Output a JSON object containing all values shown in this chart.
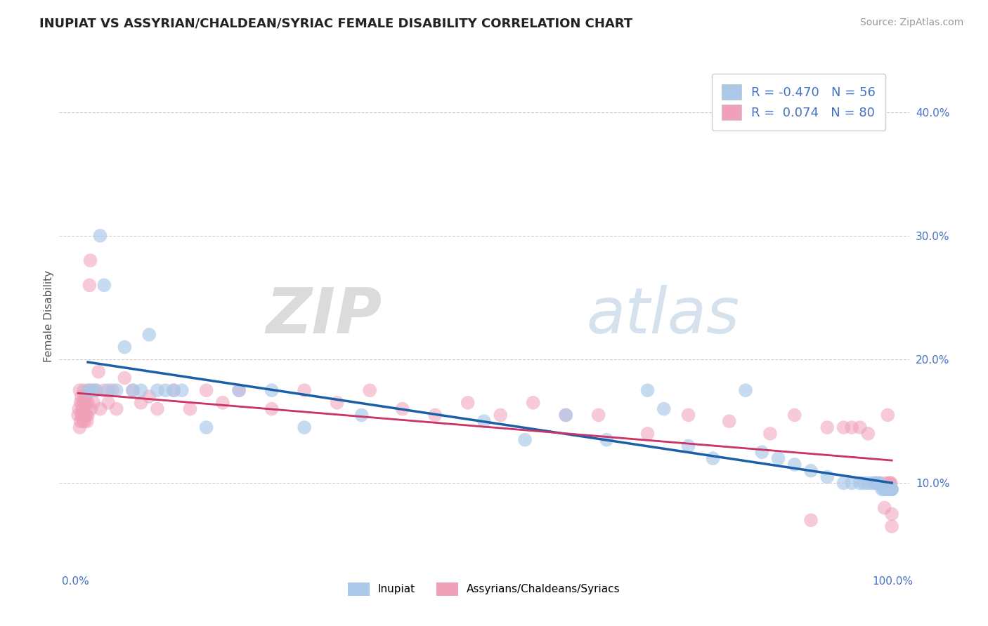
{
  "title": "INUPIAT VS ASSYRIAN/CHALDEAN/SYRIAC FEMALE DISABILITY CORRELATION CHART",
  "source": "Source: ZipAtlas.com",
  "ylabel": "Female Disability",
  "xlim": [
    -0.02,
    1.02
  ],
  "ylim": [
    0.03,
    0.44
  ],
  "yticks": [
    0.1,
    0.2,
    0.3,
    0.4
  ],
  "ytick_labels": [
    "10.0%",
    "20.0%",
    "30.0%",
    "40.0%"
  ],
  "xtick_positions": [
    0.0,
    1.0
  ],
  "xtick_labels": [
    "0.0%",
    "100.0%"
  ],
  "legend_R1": "-0.470",
  "legend_N1": "56",
  "legend_R2": "0.074",
  "legend_N2": "80",
  "color_inupiat": "#aac8e8",
  "color_assyrian": "#f0a0b8",
  "color_inupiat_line": "#1a5fa8",
  "color_assyrian_line": "#cc3366",
  "background_color": "#ffffff",
  "grid_color": "#cccccc",
  "inupiat_x": [
    0.015,
    0.02,
    0.025,
    0.03,
    0.035,
    0.04,
    0.05,
    0.06,
    0.07,
    0.08,
    0.09,
    0.1,
    0.11,
    0.12,
    0.13,
    0.16,
    0.2,
    0.24,
    0.28,
    0.35,
    0.5,
    0.55,
    0.6,
    0.65,
    0.7,
    0.72,
    0.75,
    0.78,
    0.82,
    0.84,
    0.86,
    0.88,
    0.9,
    0.92,
    0.94,
    0.95,
    0.96,
    0.965,
    0.97,
    0.975,
    0.978,
    0.981,
    0.984,
    0.987,
    0.989,
    0.991,
    0.993,
    0.994,
    0.995,
    0.996,
    0.997,
    0.997,
    0.998,
    0.998,
    0.999,
    0.999
  ],
  "inupiat_y": [
    0.175,
    0.175,
    0.175,
    0.3,
    0.26,
    0.175,
    0.175,
    0.21,
    0.175,
    0.175,
    0.22,
    0.175,
    0.175,
    0.175,
    0.175,
    0.145,
    0.175,
    0.175,
    0.145,
    0.155,
    0.15,
    0.135,
    0.155,
    0.135,
    0.175,
    0.16,
    0.13,
    0.12,
    0.175,
    0.125,
    0.12,
    0.115,
    0.11,
    0.105,
    0.1,
    0.1,
    0.1,
    0.1,
    0.1,
    0.1,
    0.1,
    0.1,
    0.1,
    0.095,
    0.095,
    0.095,
    0.095,
    0.095,
    0.095,
    0.095,
    0.095,
    0.095,
    0.095,
    0.095,
    0.095,
    0.095
  ],
  "assyrian_x": [
    0.003,
    0.004,
    0.005,
    0.005,
    0.006,
    0.006,
    0.007,
    0.007,
    0.008,
    0.008,
    0.008,
    0.009,
    0.009,
    0.01,
    0.01,
    0.01,
    0.011,
    0.011,
    0.012,
    0.012,
    0.013,
    0.013,
    0.014,
    0.015,
    0.015,
    0.016,
    0.017,
    0.018,
    0.019,
    0.02,
    0.022,
    0.025,
    0.028,
    0.03,
    0.035,
    0.04,
    0.045,
    0.05,
    0.06,
    0.07,
    0.08,
    0.09,
    0.1,
    0.12,
    0.14,
    0.16,
    0.18,
    0.2,
    0.24,
    0.28,
    0.32,
    0.36,
    0.4,
    0.44,
    0.48,
    0.52,
    0.56,
    0.6,
    0.64,
    0.7,
    0.75,
    0.8,
    0.85,
    0.88,
    0.9,
    0.92,
    0.94,
    0.95,
    0.96,
    0.97,
    0.98,
    0.985,
    0.99,
    0.992,
    0.994,
    0.996,
    0.997,
    0.998,
    0.999,
    0.999
  ],
  "assyrian_y": [
    0.155,
    0.16,
    0.145,
    0.175,
    0.15,
    0.165,
    0.155,
    0.17,
    0.155,
    0.16,
    0.165,
    0.15,
    0.16,
    0.155,
    0.165,
    0.175,
    0.15,
    0.165,
    0.155,
    0.17,
    0.155,
    0.165,
    0.15,
    0.155,
    0.165,
    0.175,
    0.26,
    0.28,
    0.16,
    0.175,
    0.165,
    0.175,
    0.19,
    0.16,
    0.175,
    0.165,
    0.175,
    0.16,
    0.185,
    0.175,
    0.165,
    0.17,
    0.16,
    0.175,
    0.16,
    0.175,
    0.165,
    0.175,
    0.16,
    0.175,
    0.165,
    0.175,
    0.16,
    0.155,
    0.165,
    0.155,
    0.165,
    0.155,
    0.155,
    0.14,
    0.155,
    0.15,
    0.14,
    0.155,
    0.07,
    0.145,
    0.145,
    0.145,
    0.145,
    0.14,
    0.1,
    0.1,
    0.08,
    0.1,
    0.155,
    0.1,
    0.1,
    0.1,
    0.075,
    0.065
  ]
}
